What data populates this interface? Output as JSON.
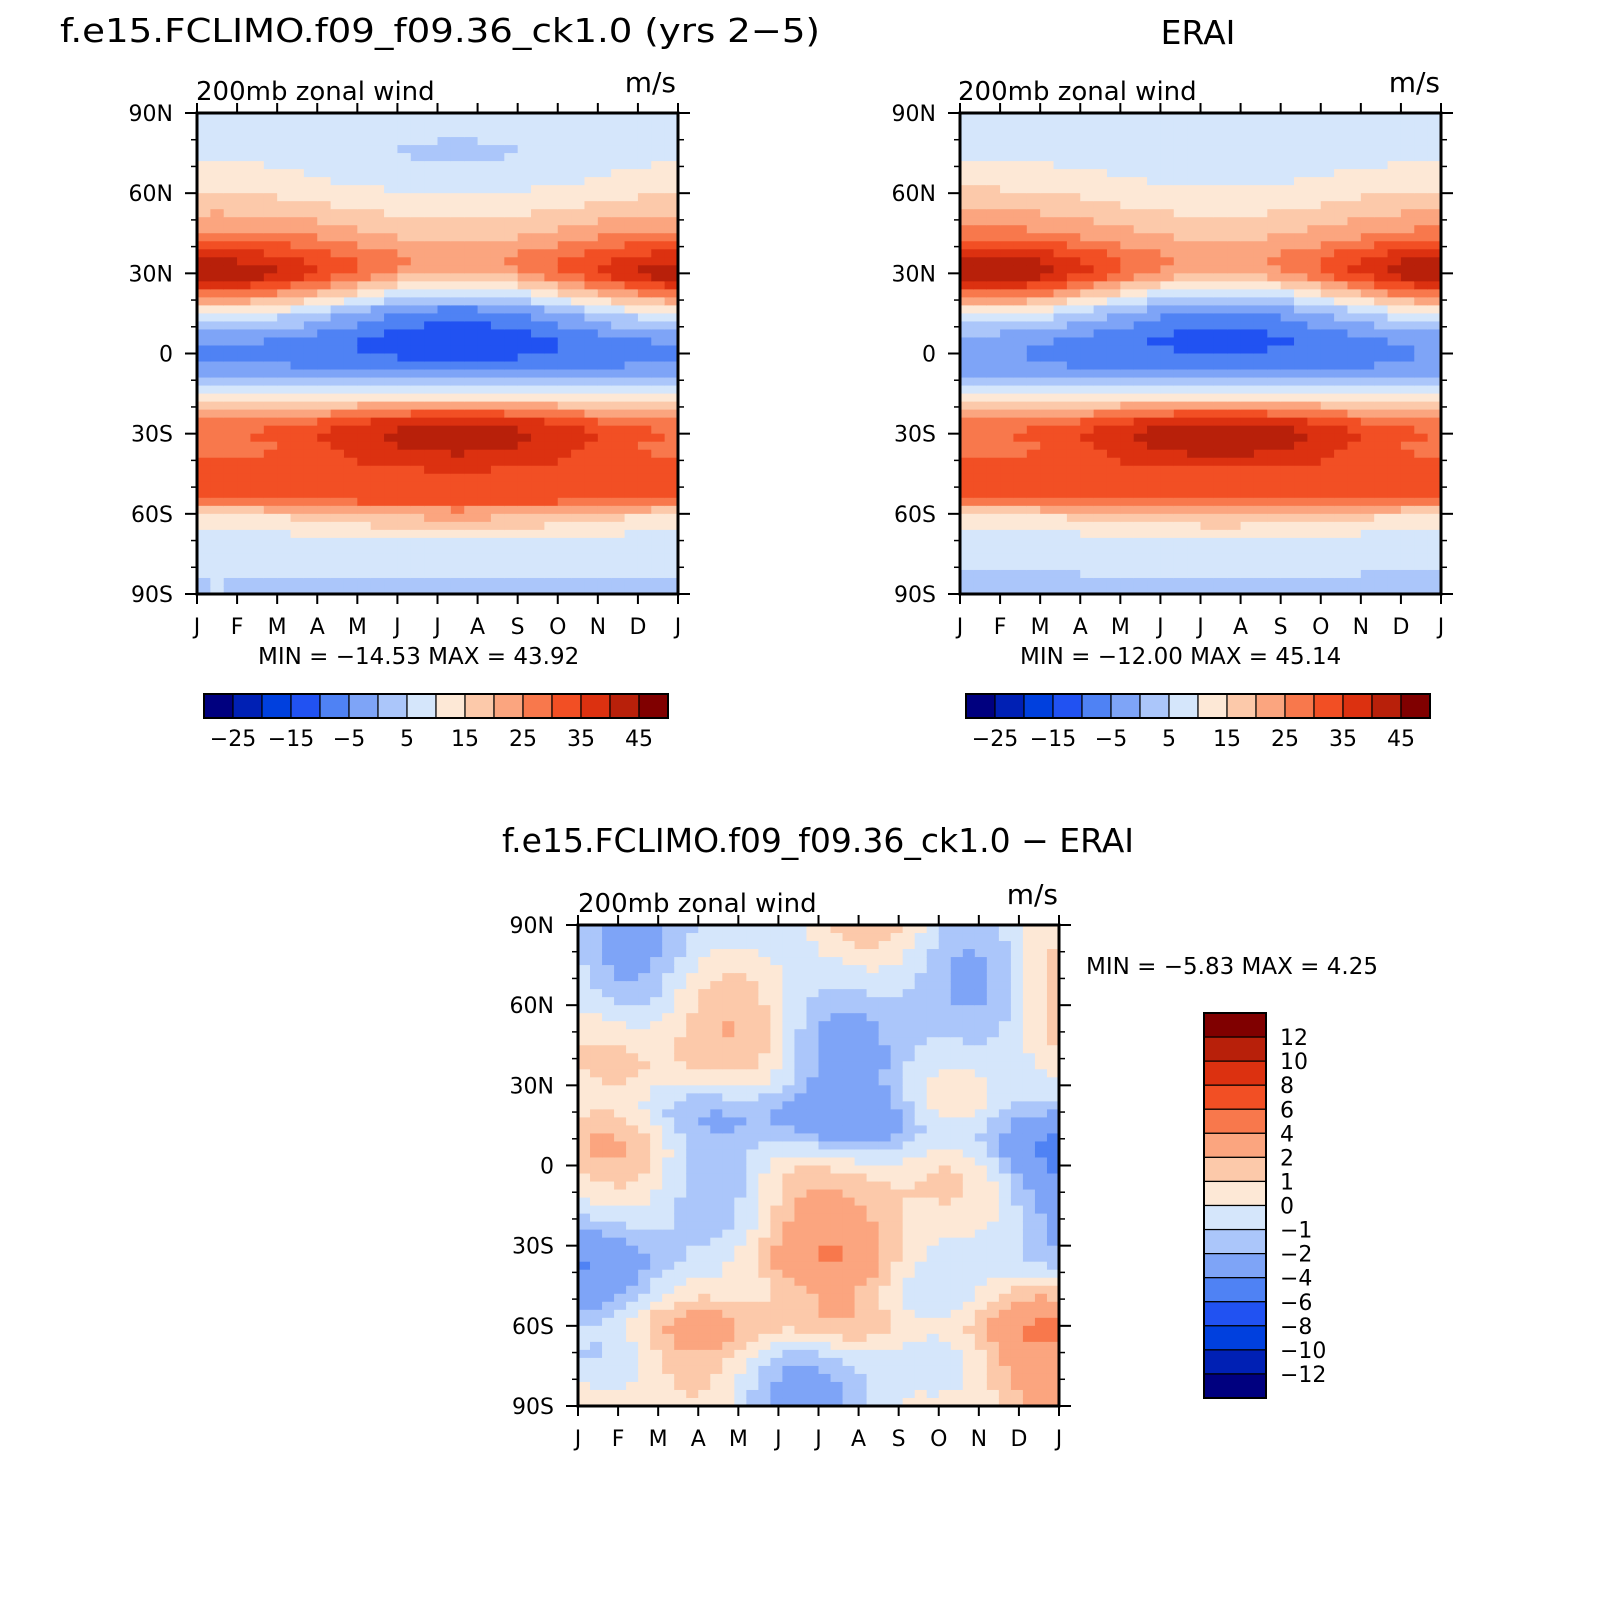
{
  "colors": {
    "abs": [
      "#00007f",
      "#0020b4",
      "#0040de",
      "#2152f2",
      "#4f82f4",
      "#7ea4f7",
      "#abc6fa",
      "#d5e6fb",
      "#fde8d6",
      "#fcc9aa",
      "#fba57f",
      "#f8784c",
      "#f24f24",
      "#dc3110",
      "#b8200a",
      "#800000"
    ],
    "diff": [
      "#00007f",
      "#0020b4",
      "#0040de",
      "#2152f2",
      "#4f82f4",
      "#7ea4f7",
      "#abc6fa",
      "#d5e6fb",
      "#fde8d6",
      "#fcc9aa",
      "#fba57f",
      "#f8784c",
      "#f24f24",
      "#dc3110",
      "#b8200a",
      "#800000"
    ]
  },
  "chart_data": [
    {
      "id": "model",
      "type": "heatmap",
      "title": "f.e15.FCLIMO.f09_f09.36_ck1.0 (yrs 2−5)",
      "left_label": "200mb  zonal  wind",
      "right_label": "m/s",
      "stats": "MIN  =   −14.53  MAX  =     43.92",
      "x_ticks": [
        "J",
        "F",
        "M",
        "A",
        "M",
        "J",
        "J",
        "A",
        "S",
        "O",
        "N",
        "D",
        "J"
      ],
      "y_ticks": [
        "90N",
        "60N",
        "30N",
        "0",
        "30S",
        "60S",
        "90S"
      ],
      "levels": [
        -30,
        -25,
        -20,
        -15,
        -10,
        -5,
        0,
        5,
        10,
        15,
        20,
        25,
        30,
        35,
        40,
        45
      ],
      "colorbar_labels": [
        "−25",
        "−15",
        "−5",
        "5",
        "15",
        "25",
        "35",
        "45"
      ],
      "profile_lat": [
        90,
        75,
        65,
        55,
        45,
        35,
        30,
        25,
        15,
        5,
        0,
        -5,
        -15,
        -25,
        -30,
        -35,
        -45,
        -55,
        -60,
        -70,
        -80,
        -90
      ],
      "profile_jan": [
        7,
        9,
        12,
        18,
        26,
        40,
        45,
        35,
        10,
        -4,
        -6,
        -4,
        8,
        25,
        30,
        28,
        32,
        30,
        15,
        7,
        5,
        5
      ],
      "profile_jul": [
        7,
        4,
        7,
        12,
        18,
        24,
        20,
        10,
        -8,
        -14,
        -12,
        -8,
        10,
        38,
        44,
        42,
        34,
        32,
        22,
        10,
        6,
        4
      ]
    },
    {
      "id": "obs",
      "type": "heatmap",
      "title": "ERAI",
      "left_label": "200mb  zonal  wind",
      "right_label": "m/s",
      "stats": "MIN  =   −12.00  MAX  =     45.14",
      "x_ticks": [
        "J",
        "F",
        "M",
        "A",
        "M",
        "J",
        "J",
        "A",
        "S",
        "O",
        "N",
        "D",
        "J"
      ],
      "y_ticks": [
        "90N",
        "60N",
        "30N",
        "0",
        "30S",
        "60S",
        "90S"
      ],
      "levels": [
        -30,
        -25,
        -20,
        -15,
        -10,
        -5,
        0,
        5,
        10,
        15,
        20,
        25,
        30,
        35,
        40,
        45
      ],
      "colorbar_labels": [
        "−25",
        "−15",
        "−5",
        "5",
        "15",
        "25",
        "35",
        "45"
      ],
      "profile_lat": [
        90,
        75,
        65,
        55,
        45,
        35,
        30,
        25,
        15,
        5,
        0,
        -5,
        -15,
        -25,
        -30,
        -35,
        -45,
        -55,
        -60,
        -70,
        -80,
        -90
      ],
      "profile_jan": [
        6,
        9,
        13,
        19,
        27,
        42,
        46,
        36,
        10,
        -3,
        -5,
        -4,
        8,
        25,
        30,
        28,
        32,
        30,
        15,
        7,
        5,
        4
      ],
      "profile_jul": [
        6,
        5,
        9,
        13,
        18,
        24,
        21,
        10,
        -7,
        -12,
        -10,
        -7,
        10,
        38,
        45,
        43,
        33,
        30,
        20,
        9,
        6,
        4
      ]
    },
    {
      "id": "diff",
      "type": "heatmap",
      "title": "f.e15.FCLIMO.f09_f09.36_ck1.0  −  ERAI",
      "left_label": "200mb  zonal  wind",
      "right_label": "m/s",
      "stats": "MIN  =     −5.83  MAX  =      4.25",
      "x_ticks": [
        "J",
        "F",
        "M",
        "A",
        "M",
        "J",
        "J",
        "A",
        "S",
        "O",
        "N",
        "D",
        "J"
      ],
      "y_ticks": [
        "90N",
        "60N",
        "30N",
        "0",
        "30S",
        "60S",
        "90S"
      ],
      "levels": [
        -14,
        -12,
        -10,
        -8,
        -6,
        -4,
        -2,
        -1,
        0,
        1,
        2,
        4,
        6,
        8,
        10,
        12
      ],
      "colorbar_labels": [
        "12",
        "10",
        "8",
        "6",
        "4",
        "2",
        "1",
        "0",
        "−1",
        "−2",
        "−4",
        "−6",
        "−8",
        "−10",
        "−12"
      ]
    }
  ]
}
